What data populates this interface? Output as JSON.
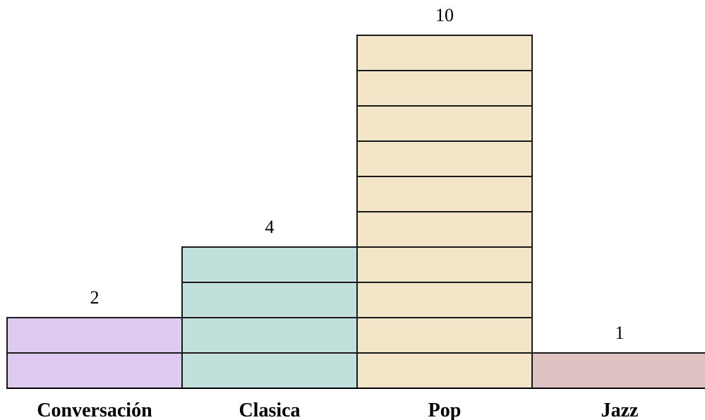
{
  "chart_data": {
    "type": "bar",
    "title": "",
    "xlabel": "",
    "ylabel": "",
    "categories": [
      "Conversación",
      "Clasica",
      "Pop",
      "Jazz"
    ],
    "values": [
      2,
      4,
      10,
      1
    ],
    "ylim": [
      0,
      10
    ],
    "grid": false,
    "value_labels": [
      "2",
      "4",
      "10",
      "1"
    ],
    "colors": [
      "#dfcbf1",
      "#c1dfdb",
      "#f2e5c8",
      "#dfc2c2"
    ]
  }
}
